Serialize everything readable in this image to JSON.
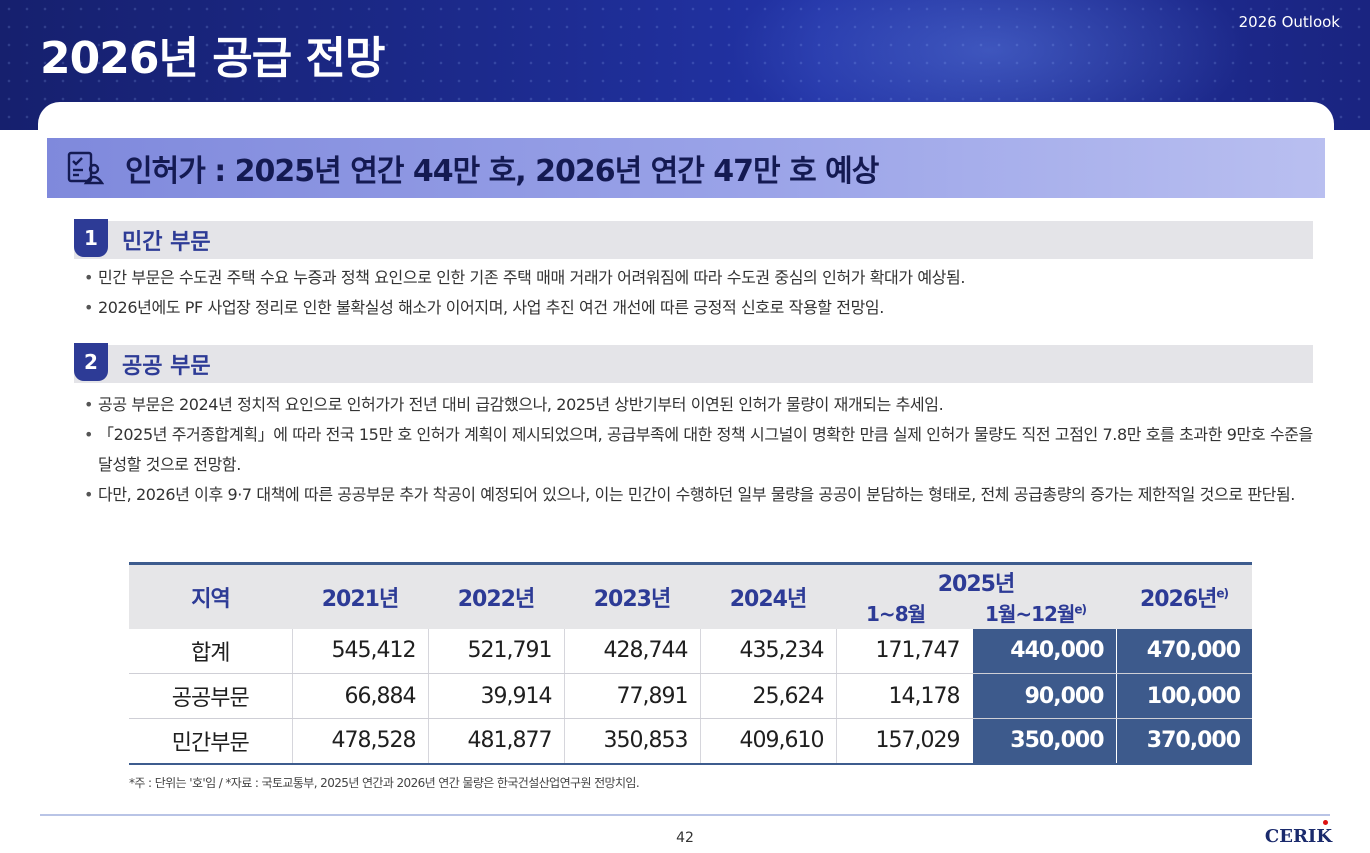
{
  "header": {
    "title": "2026년 공급 전망",
    "badge": "2026 Outlook"
  },
  "banner": {
    "icon": "checklist-person-icon",
    "text": "인허가 : 2025년 연간 44만 호, 2026년 연간 47만 호 예상"
  },
  "sections": [
    {
      "num": "1",
      "title": "민간 부문",
      "bullets": [
        "민간 부문은 수도권 주택 수요 누증과 정책 요인으로 인한 기존 주택 매매 거래가 어려워짐에 따라 수도권 중심의 인허가 확대가 예상됨.",
        "2026년에도 PF 사업장 정리로 인한 불확실성 해소가 이어지며, 사업 추진 여건 개선에 따른 긍정적 신호로 작용할 전망임."
      ]
    },
    {
      "num": "2",
      "title": "공공 부문",
      "bullets": [
        "공공 부문은 2024년 정치적 요인으로 인허가가 전년 대비 급감했으나, 2025년 상반기부터 이연된 인허가 물량이 재개되는 추세임.",
        "「2025년 주거종합계획」에 따라 전국 15만 호 인허가 계획이 제시되었으며, 공급부족에 대한 정책 시그널이 명확한 만큼 실제 인허가 물량도 직전 고점인 7.8만 호를 초과한 9만호 수준을 달성할 것으로 전망함.",
        "다만, 2026년 이후 9·7 대책에 따른 공공부문 추가 착공이 예정되어 있으나, 이는 민간이 수행하던 일부 물량을 공공이 분담하는 형태로, 전체 공급총량의 증가는 제한적일 것으로 판단됨."
      ]
    }
  ],
  "table": {
    "headers": {
      "region": "지역",
      "y2021": "2021년",
      "y2022": "2022년",
      "y2023": "2023년",
      "y2024": "2024년",
      "y2025": "2025년",
      "y2025_a": "1~8월",
      "y2025_b": "1월~12월",
      "y2025_b_sup": "e)",
      "y2026": "2026년",
      "y2026_sup": "e)"
    },
    "rows": [
      {
        "region": "합계",
        "v2021": "545,412",
        "v2022": "521,791",
        "v2023": "428,744",
        "v2024": "435,234",
        "v2025a": "171,747",
        "v2025b": "440,000",
        "v2026": "470,000"
      },
      {
        "region": "공공부문",
        "v2021": "66,884",
        "v2022": "39,914",
        "v2023": "77,891",
        "v2024": "25,624",
        "v2025a": "14,178",
        "v2025b": "90,000",
        "v2026": "100,000"
      },
      {
        "region": "민간부문",
        "v2021": "478,528",
        "v2022": "481,877",
        "v2023": "350,853",
        "v2024": "409,610",
        "v2025a": "157,029",
        "v2025b": "350,000",
        "v2026": "370,000"
      }
    ]
  },
  "footnote": "*주 : 단위는 '호'임 / *자료 : 국토교통부, 2025년 연간과 2026년 연간 물량은 한국건설산업연구원 전망치임.",
  "footer": {
    "page_number": "42",
    "logo": "CERIK"
  },
  "colors": {
    "hero": "#1c2a8c",
    "accent": "#2d3b96",
    "table_dark": "#3d5a8c"
  }
}
